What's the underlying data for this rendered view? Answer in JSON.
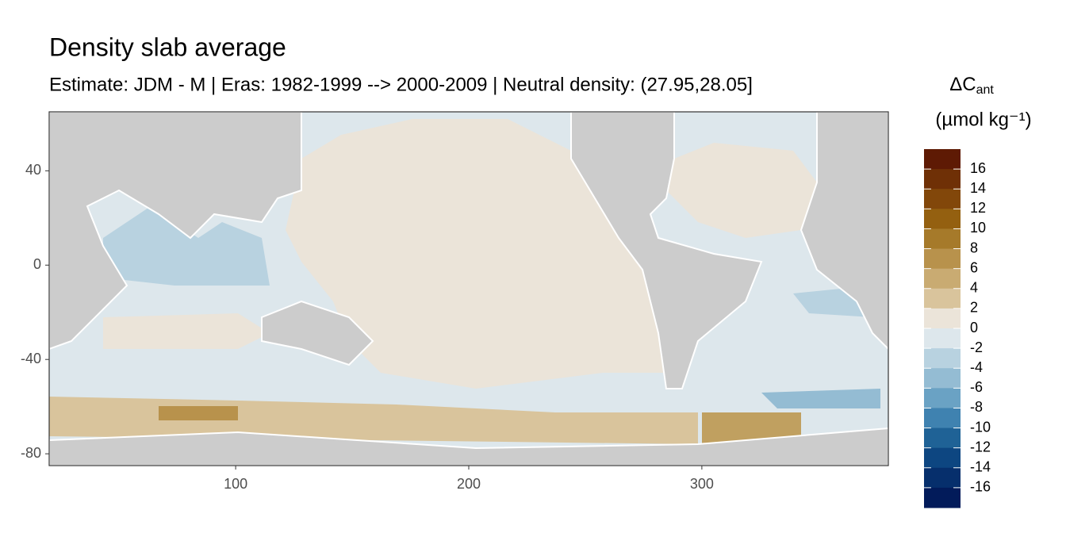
{
  "chart_data": {
    "type": "raster",
    "title": "Density slab average",
    "subtitle": "Estimate: JDM - M | Eras: 1982-1999 --> 2000-2009 | Neutral density: (27.95,28.05]",
    "xlim": [
      20,
      380
    ],
    "xticks": [
      100,
      200,
      300
    ],
    "ylim": [
      -85,
      65
    ],
    "yticks": [
      -80,
      -40,
      0,
      40
    ],
    "legend": {
      "title": "ΔC",
      "title_sub": "ant",
      "unit": "(µmol kg⁻¹)",
      "limits": [
        -18,
        18
      ],
      "breaks": [
        16,
        14,
        12,
        10,
        8,
        6,
        4,
        2,
        0,
        -2,
        -4,
        -6,
        -8,
        -10,
        -12,
        -14,
        -16
      ],
      "colors": [
        "#5e1a04",
        "#6f3006",
        "#82470a",
        "#946010",
        "#a67a2a",
        "#b8924c",
        "#c9ab72",
        "#d9c49c",
        "#ebe4d9",
        "#dde7ec",
        "#b8d2e0",
        "#94bcd3",
        "#6aa2c4",
        "#3f82b0",
        "#1f6296",
        "#0d4681",
        "#062f6c",
        "#021b5a"
      ]
    }
  }
}
